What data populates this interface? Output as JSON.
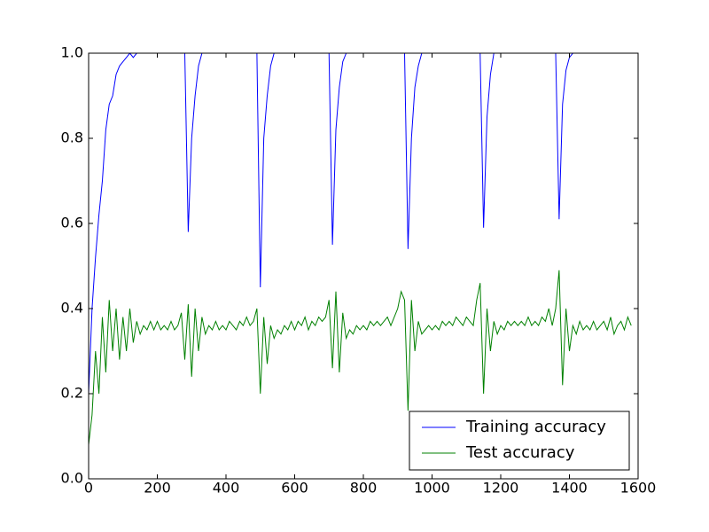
{
  "chart_data": {
    "type": "line",
    "x": [
      0,
      10,
      20,
      30,
      40,
      50,
      60,
      70,
      80,
      90,
      100,
      110,
      120,
      130,
      140,
      150,
      160,
      170,
      180,
      190,
      200,
      210,
      220,
      230,
      240,
      250,
      260,
      270,
      280,
      290,
      300,
      310,
      320,
      330,
      340,
      350,
      360,
      370,
      380,
      390,
      400,
      410,
      420,
      430,
      440,
      450,
      460,
      470,
      480,
      490,
      500,
      510,
      520,
      530,
      540,
      550,
      560,
      570,
      580,
      590,
      600,
      610,
      620,
      630,
      640,
      650,
      660,
      670,
      680,
      690,
      700,
      710,
      720,
      730,
      740,
      750,
      760,
      770,
      780,
      790,
      800,
      810,
      820,
      830,
      840,
      850,
      860,
      870,
      880,
      890,
      900,
      910,
      920,
      930,
      940,
      950,
      960,
      970,
      980,
      990,
      1000,
      1010,
      1020,
      1030,
      1040,
      1050,
      1060,
      1070,
      1080,
      1090,
      1100,
      1110,
      1120,
      1130,
      1140,
      1150,
      1160,
      1170,
      1180,
      1190,
      1200,
      1210,
      1220,
      1230,
      1240,
      1250,
      1260,
      1270,
      1280,
      1290,
      1300,
      1310,
      1320,
      1330,
      1340,
      1350,
      1360,
      1370,
      1380,
      1390,
      1400,
      1410,
      1420,
      1430,
      1440,
      1450,
      1460,
      1470,
      1480,
      1490,
      1500,
      1510,
      1520,
      1530,
      1540,
      1550,
      1560,
      1570,
      1580
    ],
    "series": [
      {
        "name": "Training accuracy",
        "color": "#0000ff",
        "values": [
          0.2,
          0.4,
          0.52,
          0.62,
          0.7,
          0.82,
          0.88,
          0.9,
          0.95,
          0.97,
          0.98,
          0.99,
          1,
          0.99,
          1,
          1,
          1,
          1,
          1,
          1,
          1,
          1,
          1,
          1,
          1,
          1,
          1,
          1,
          1,
          0.58,
          0.8,
          0.9,
          0.97,
          1,
          1,
          1,
          1,
          1,
          1,
          1,
          1,
          1,
          1,
          1,
          1,
          1,
          1,
          1,
          1,
          1,
          0.45,
          0.8,
          0.9,
          0.97,
          1,
          1,
          1,
          1,
          1,
          1,
          1,
          1,
          1,
          1,
          1,
          1,
          1,
          1,
          1,
          1,
          1,
          0.55,
          0.82,
          0.92,
          0.98,
          1,
          1,
          1,
          1,
          1,
          1,
          1,
          1,
          1,
          1,
          1,
          1,
          1,
          1,
          1,
          1,
          1,
          1,
          0.54,
          0.8,
          0.92,
          0.97,
          1,
          1,
          1,
          1,
          1,
          1,
          1,
          1,
          1,
          1,
          1,
          1,
          1,
          1,
          1,
          1,
          1,
          1,
          0.59,
          0.85,
          0.95,
          1,
          1,
          1,
          1,
          1,
          1,
          1,
          1,
          1,
          1,
          1,
          1,
          1,
          1,
          1,
          1,
          1,
          1,
          1,
          0.61,
          0.88,
          0.96,
          0.99,
          1,
          1,
          1,
          1,
          1,
          1,
          1,
          1,
          1,
          1,
          1,
          1,
          1,
          1,
          1,
          1,
          1,
          1
        ]
      },
      {
        "name": "Test accuracy",
        "color": "#008000",
        "values": [
          0.08,
          0.15,
          0.3,
          0.2,
          0.38,
          0.25,
          0.42,
          0.3,
          0.4,
          0.28,
          0.38,
          0.3,
          0.4,
          0.32,
          0.37,
          0.34,
          0.36,
          0.35,
          0.37,
          0.35,
          0.37,
          0.35,
          0.36,
          0.35,
          0.37,
          0.35,
          0.36,
          0.39,
          0.28,
          0.41,
          0.24,
          0.4,
          0.3,
          0.38,
          0.34,
          0.36,
          0.35,
          0.37,
          0.35,
          0.36,
          0.35,
          0.37,
          0.36,
          0.35,
          0.37,
          0.36,
          0.38,
          0.36,
          0.37,
          0.4,
          0.2,
          0.38,
          0.27,
          0.36,
          0.33,
          0.35,
          0.34,
          0.36,
          0.35,
          0.37,
          0.35,
          0.37,
          0.36,
          0.38,
          0.35,
          0.37,
          0.36,
          0.38,
          0.37,
          0.38,
          0.42,
          0.26,
          0.44,
          0.25,
          0.39,
          0.33,
          0.35,
          0.34,
          0.36,
          0.35,
          0.36,
          0.35,
          0.37,
          0.36,
          0.37,
          0.36,
          0.37,
          0.38,
          0.36,
          0.38,
          0.4,
          0.44,
          0.42,
          0.16,
          0.42,
          0.3,
          0.37,
          0.34,
          0.35,
          0.36,
          0.35,
          0.36,
          0.35,
          0.37,
          0.36,
          0.37,
          0.36,
          0.38,
          0.37,
          0.36,
          0.38,
          0.37,
          0.36,
          0.42,
          0.46,
          0.2,
          0.4,
          0.3,
          0.37,
          0.34,
          0.36,
          0.35,
          0.37,
          0.36,
          0.37,
          0.36,
          0.37,
          0.36,
          0.38,
          0.36,
          0.37,
          0.36,
          0.38,
          0.37,
          0.4,
          0.36,
          0.4,
          0.49,
          0.22,
          0.4,
          0.3,
          0.36,
          0.34,
          0.37,
          0.35,
          0.36,
          0.35,
          0.37,
          0.35,
          0.36,
          0.37,
          0.35,
          0.38,
          0.34,
          0.36,
          0.37,
          0.35,
          0.38,
          0.36
        ]
      }
    ],
    "xlim": [
      0,
      1600
    ],
    "xticks": [
      0,
      200,
      400,
      600,
      800,
      1000,
      1200,
      1400,
      1600
    ],
    "ylim": [
      0,
      1
    ],
    "yticks": [
      {
        "value": 0,
        "label": "0.0"
      },
      0.2,
      0.4,
      0.6,
      0.8,
      {
        "value": 1,
        "label": "1.0"
      }
    ],
    "grid": false,
    "legend": "lower right"
  }
}
